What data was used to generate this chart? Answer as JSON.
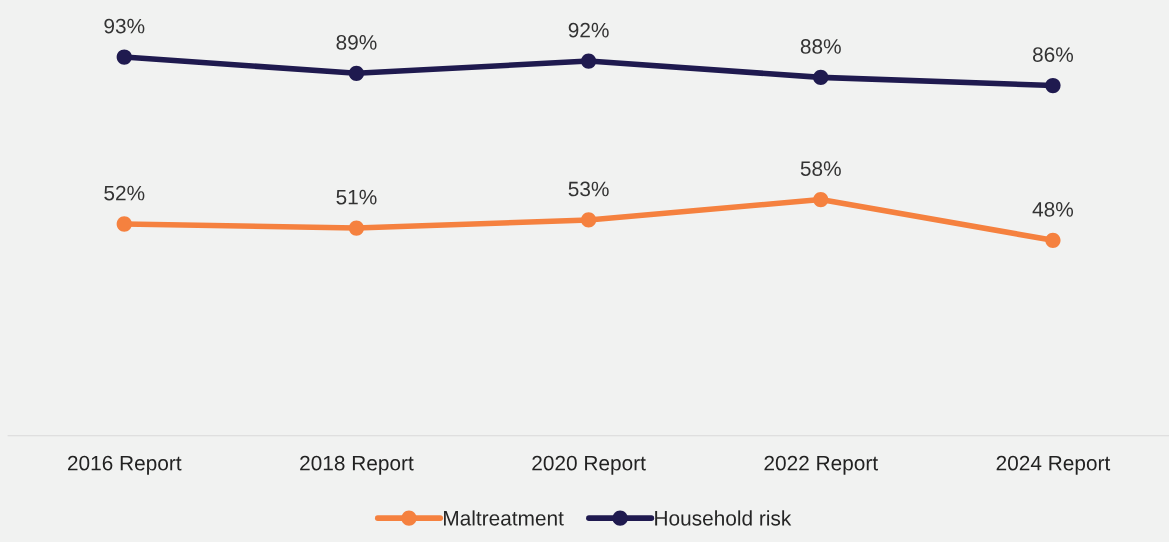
{
  "chart_data": {
    "type": "line",
    "categories": [
      "2016 Report",
      "2018 Report",
      "2020 Report",
      "2022 Report",
      "2024 Report"
    ],
    "series": [
      {
        "name": "Maltreatment",
        "color": "#f5813f",
        "values": [
          52,
          51,
          53,
          58,
          48
        ],
        "value_labels": [
          "52%",
          "51%",
          "53%",
          "58%",
          "48%"
        ]
      },
      {
        "name": "Household risk",
        "color": "#1f1a4f",
        "values": [
          93,
          89,
          92,
          88,
          86
        ],
        "value_labels": [
          "93%",
          "89%",
          "92%",
          "88%",
          "86%"
        ]
      }
    ],
    "ylim": [
      0,
      107
    ],
    "tick_labels": "x",
    "marker": "circle",
    "line_style": "solid",
    "grid": false,
    "legend": "bottom"
  }
}
